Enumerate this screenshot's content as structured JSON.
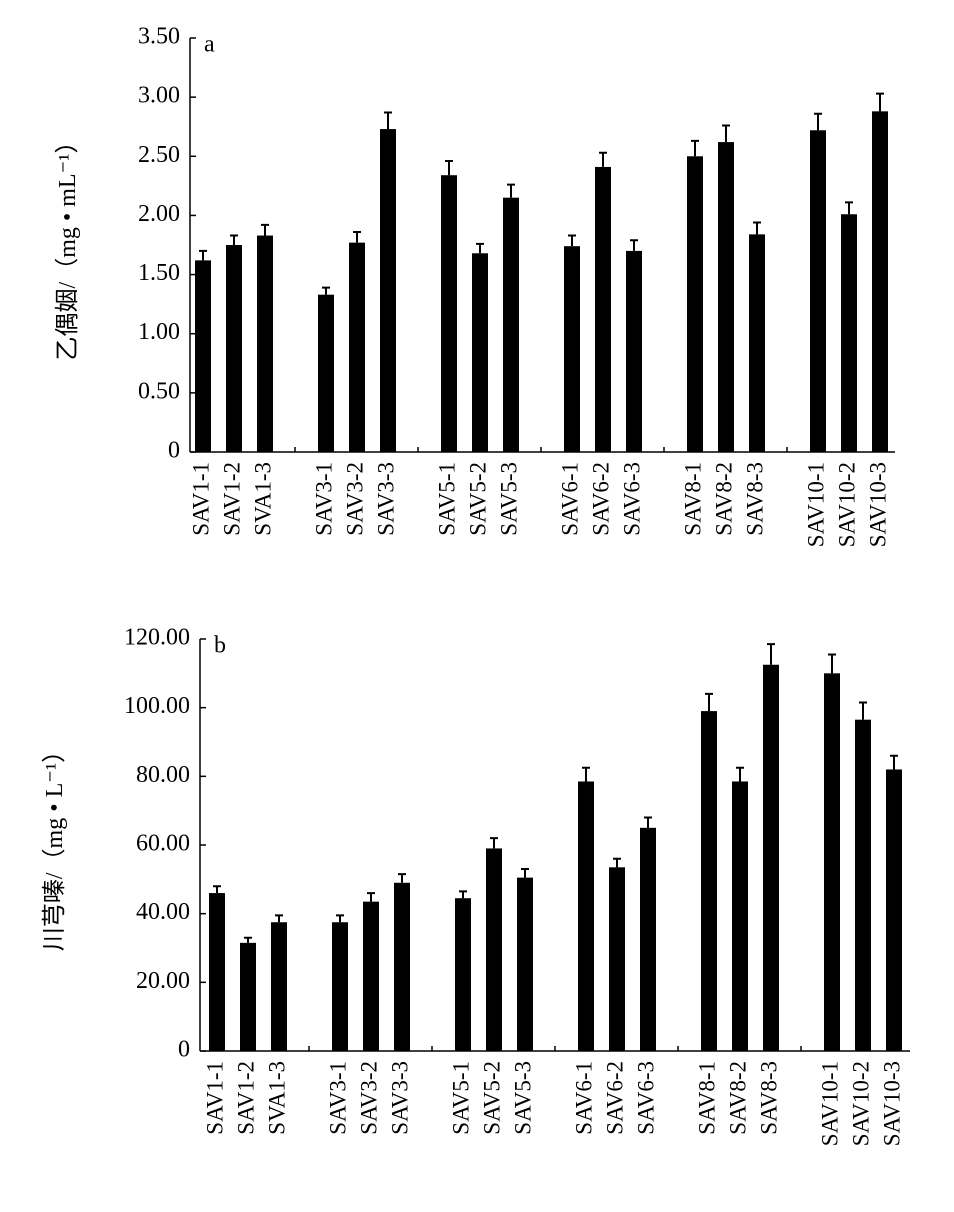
{
  "chart_data": [
    {
      "type": "bar",
      "annotation": "a",
      "y_label": "乙偶姻/（mg • mL⁻¹）",
      "color": "#000000",
      "categories": [
        "SAV1-1",
        "SAV1-2",
        "SVA1-3",
        "SAV3-1",
        "SAV3-2",
        "SAV3-3",
        "SAV5-1",
        "SAV5-2",
        "SAV5-3",
        "SAV6-1",
        "SAV6-2",
        "SAV6-3",
        "SAV8-1",
        "SAV8-2",
        "SAV8-3",
        "SAV10-1",
        "SAV10-2",
        "SAV10-3"
      ],
      "values": [
        1.62,
        1.75,
        1.83,
        1.33,
        1.77,
        2.73,
        2.34,
        1.68,
        2.15,
        1.74,
        2.41,
        1.7,
        2.5,
        2.62,
        1.84,
        2.72,
        2.01,
        2.88
      ],
      "errors": [
        0.08,
        0.08,
        0.09,
        0.06,
        0.09,
        0.14,
        0.12,
        0.08,
        0.11,
        0.09,
        0.12,
        0.09,
        0.13,
        0.14,
        0.1,
        0.14,
        0.1,
        0.15
      ],
      "ylim": [
        0,
        3.5
      ],
      "yticks": [
        0,
        {
          "value": 0.5,
          "label": "0.50"
        },
        {
          "value": 1,
          "label": "1.00"
        },
        {
          "value": 1.5,
          "label": "1.50"
        },
        {
          "value": 2,
          "label": "2.00"
        },
        {
          "value": 2.5,
          "label": "2.50"
        },
        {
          "value": 3,
          "label": "3.00"
        },
        {
          "value": 3.5,
          "label": "3.50"
        }
      ]
    },
    {
      "type": "bar",
      "annotation": "b",
      "y_label": "川芎嗪/（mg • L⁻¹）",
      "color": "#000000",
      "categories": [
        "SAV1-1",
        "SAV1-2",
        "SVA1-3",
        "SAV3-1",
        "SAV3-2",
        "SAV3-3",
        "SAV5-1",
        "SAV5-2",
        "SAV5-3",
        "SAV6-1",
        "SAV6-2",
        "SAV6-3",
        "SAV8-1",
        "SAV8-2",
        "SAV8-3",
        "SAV10-1",
        "SAV10-2",
        "SAV10-3"
      ],
      "values": [
        46,
        31.5,
        37.5,
        37.5,
        43.5,
        49,
        44.5,
        59,
        50.5,
        78.5,
        53.5,
        65,
        99,
        78.5,
        112.5,
        110,
        96.5,
        82
      ],
      "errors": [
        2,
        1.5,
        2,
        2,
        2.5,
        2.5,
        2,
        3,
        2.5,
        4,
        2.5,
        3,
        5,
        4,
        6,
        5.5,
        5,
        4
      ],
      "ylim": [
        0,
        120
      ],
      "yticks": [
        0,
        {
          "value": 20,
          "label": "20.00"
        },
        {
          "value": 40,
          "label": "40.00"
        },
        {
          "value": 60,
          "label": "60.00"
        },
        {
          "value": 80,
          "label": "80.00"
        },
        {
          "value": 100,
          "label": "100.00"
        },
        {
          "value": 120,
          "label": "120.00"
        }
      ]
    }
  ]
}
